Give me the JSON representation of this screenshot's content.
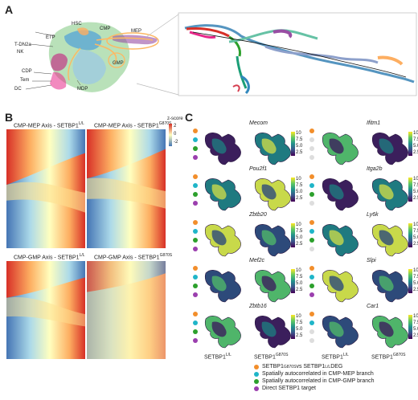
{
  "panels": {
    "a": "A",
    "b": "B",
    "c": "C"
  },
  "panel_a": {
    "labels": [
      "HSC",
      "CMP",
      "MEP",
      "ETP",
      "T-DN2a",
      "NK",
      "GMP",
      "CDP",
      "Tem",
      "DC",
      "MDP"
    ]
  },
  "panel_b": {
    "titles": [
      "CMP-MEP Axis - SETBP1",
      "CMP-MEP Axis - SETBP1",
      "CMP-GMP Axis - SETBP1",
      "CMP-GMP Axis - SETBP1"
    ],
    "sups": [
      "L/L",
      "G870S",
      "L/L",
      "G870S"
    ],
    "zscore_title": "z-score",
    "zscore_ticks": [
      "2",
      "0",
      "-2"
    ]
  },
  "panel_c": {
    "genes_left": [
      "Mecom",
      "Pou2f1",
      "Zbtb20",
      "Mef2c",
      "Zbtb16"
    ],
    "genes_right": [
      "Ifitm1",
      "Itga2b",
      "Ly6k",
      "Slpi",
      "Car1"
    ],
    "cbar_ticks": [
      "10",
      "7.5",
      "5.0",
      "2.5"
    ],
    "xlabel_prefix": "SETBP1",
    "xlabels_sup": [
      "L/L",
      "G870S",
      "L/L",
      "G870S"
    ],
    "legend": [
      {
        "pre": "SETBP1",
        "sup1": "G870S",
        "mid": " vs SETBP1",
        "sup2": "L/L",
        "post": " DEG",
        "color": "#f28e2b"
      },
      {
        "text": "Spatially autocorrelated in CMP-MEP branch",
        "color": "#1fb5c8"
      },
      {
        "text": "Spatially autocorrelated in CMP-GMP branch",
        "color": "#2ca02c"
      },
      {
        "text": "Direct SETBP1 target",
        "color": "#9b3fae"
      }
    ],
    "dots_left": [
      [
        "#f28e2b",
        "#1fb5c8",
        "#2ca02c",
        "#9b3fae"
      ],
      [
        "#f28e2b",
        "#1fb5c8",
        "#2ca02c",
        "#9b3fae"
      ],
      [
        "#f28e2b",
        "#1fb5c8",
        "#2ca02c",
        "#9b3fae"
      ],
      [
        "#f28e2b",
        "#1fb5c8",
        "#2ca02c",
        "#9b3fae"
      ],
      [
        "#f28e2b",
        "#1fb5c8",
        "#2ca02c",
        "#9b3fae"
      ]
    ],
    "dots_right": [
      [
        "#f28e2b",
        "#dddddd",
        "#dddddd",
        "#dddddd"
      ],
      [
        "#f28e2b",
        "#1fb5c8",
        "#2ca02c",
        "#dddddd"
      ],
      [
        "#f28e2b",
        "#1fb5c8",
        "#2ca02c",
        "#dddddd"
      ],
      [
        "#f28e2b",
        "#1fb5c8",
        "#2ca02c",
        "#9b3fae"
      ],
      [
        "#f28e2b",
        "#1fb5c8",
        "#dddddd",
        "#dddddd"
      ]
    ]
  }
}
